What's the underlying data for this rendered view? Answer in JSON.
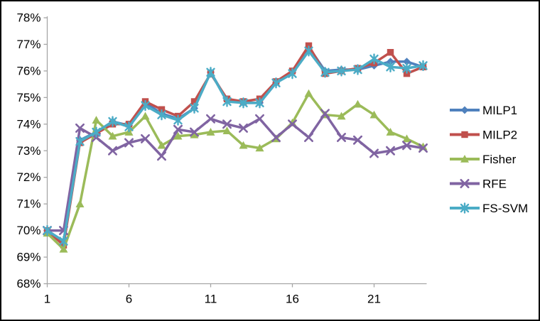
{
  "figure": {
    "background_color": "#FFFFFF",
    "border_color": "#000000",
    "axis_color": "#A6A6A6",
    "text_color": "#000000"
  },
  "chart_data": {
    "type": "line",
    "title": "",
    "xlabel": "",
    "ylabel": "",
    "grid": false,
    "legend_position": "right",
    "ylim": [
      68,
      78
    ],
    "y_tick_step": 1,
    "y_tick_labels": [
      "78%",
      "77%",
      "76%",
      "75%",
      "74%",
      "73%",
      "72%",
      "71%",
      "70%",
      "69%",
      "68%"
    ],
    "y_tick_values": [
      78,
      77,
      76,
      75,
      74,
      73,
      72,
      71,
      70,
      69,
      68
    ],
    "x": [
      1,
      2,
      3,
      4,
      5,
      6,
      7,
      8,
      9,
      10,
      11,
      12,
      13,
      14,
      15,
      16,
      17,
      18,
      19,
      20,
      21,
      22,
      23,
      24
    ],
    "x_tick_values": [
      1,
      6,
      11,
      16,
      21
    ],
    "x_tick_labels": [
      "1",
      "6",
      "11",
      "16",
      "21"
    ],
    "series": [
      {
        "name": "MILP1",
        "color": "#4F81BD",
        "marker": "diamond",
        "values": [
          70.0,
          69.6,
          73.4,
          73.7,
          74.1,
          73.95,
          74.8,
          74.4,
          74.2,
          74.6,
          75.95,
          74.9,
          74.8,
          74.8,
          75.55,
          75.95,
          76.9,
          76.0,
          76.05,
          76.05,
          76.2,
          76.35,
          76.35,
          76.15
        ]
      },
      {
        "name": "MILP2",
        "color": "#C0504D",
        "marker": "square",
        "values": [
          70.0,
          69.45,
          73.3,
          73.65,
          74.0,
          74.0,
          74.85,
          74.55,
          74.3,
          74.85,
          75.9,
          74.95,
          74.85,
          74.95,
          75.6,
          76.0,
          76.95,
          75.9,
          76.0,
          76.1,
          76.3,
          76.7,
          75.9,
          76.15
        ]
      },
      {
        "name": "Fisher",
        "color": "#9BBB59",
        "marker": "triangle",
        "values": [
          69.9,
          69.3,
          71.0,
          74.15,
          73.55,
          73.7,
          74.3,
          73.2,
          73.55,
          73.6,
          73.7,
          73.75,
          73.2,
          73.1,
          73.45,
          74.05,
          75.15,
          74.35,
          74.3,
          74.75,
          74.35,
          73.7,
          73.45,
          73.15
        ]
      },
      {
        "name": "RFE",
        "color": "#8064A2",
        "marker": "x",
        "values": [
          70.0,
          70.0,
          73.85,
          73.5,
          73.0,
          73.3,
          73.45,
          72.8,
          73.8,
          73.7,
          74.2,
          74.0,
          73.85,
          74.2,
          73.5,
          74.0,
          73.5,
          74.4,
          73.5,
          73.4,
          72.9,
          73.0,
          73.2,
          73.1
        ]
      },
      {
        "name": "FS-SVM",
        "color": "#4BACC6",
        "marker": "star",
        "values": [
          70.0,
          69.6,
          73.35,
          73.7,
          74.1,
          73.9,
          74.7,
          74.35,
          74.15,
          74.6,
          75.95,
          74.85,
          74.8,
          74.8,
          75.55,
          75.9,
          76.75,
          75.95,
          76.0,
          76.05,
          76.45,
          76.15,
          76.1,
          76.2
        ]
      }
    ]
  }
}
